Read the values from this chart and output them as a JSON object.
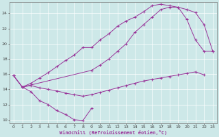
{
  "xlabel": "Windchill (Refroidissement éolien,°C)",
  "bg_color": "#cde8e8",
  "line_color": "#993399",
  "grid_color": "#b0d8d8",
  "xlim": [
    -0.5,
    23.5
  ],
  "ylim": [
    9.5,
    25.5
  ],
  "xticks": [
    0,
    1,
    2,
    3,
    4,
    5,
    6,
    7,
    8,
    9,
    10,
    11,
    12,
    13,
    14,
    15,
    16,
    17,
    18,
    19,
    20,
    21,
    22,
    23
  ],
  "yticks": [
    10,
    12,
    14,
    16,
    18,
    20,
    22,
    24
  ],
  "lines": [
    {
      "x": [
        0,
        1,
        2,
        3,
        4,
        5,
        6,
        7,
        8,
        9
      ],
      "y": [
        15.8,
        14.3,
        13.7,
        12.5,
        12.0,
        11.2,
        10.7,
        10.0,
        9.9,
        11.5
      ]
    },
    {
      "x": [
        0,
        1,
        2,
        3,
        4,
        5,
        6,
        7,
        8,
        9,
        10,
        11,
        12,
        13,
        14,
        15,
        16,
        17,
        18,
        19,
        20,
        21,
        22
      ],
      "y": [
        15.8,
        14.3,
        14.5,
        14.2,
        14.0,
        13.8,
        13.5,
        13.3,
        13.1,
        13.3,
        13.6,
        13.9,
        14.2,
        14.5,
        14.8,
        15.1,
        15.3,
        15.5,
        15.7,
        15.9,
        16.1,
        16.3,
        15.9
      ]
    },
    {
      "x": [
        0,
        1,
        2,
        3,
        4,
        5,
        6,
        7,
        8,
        9,
        10,
        11,
        12,
        13,
        14,
        15,
        16,
        17,
        18,
        19,
        20,
        21,
        22,
        23
      ],
      "y": [
        15.8,
        14.3,
        14.8,
        15.5,
        16.2,
        17.0,
        17.8,
        18.5,
        19.5,
        19.5,
        20.5,
        21.3,
        22.3,
        23.0,
        23.5,
        24.2,
        25.0,
        25.2,
        25.0,
        24.8,
        23.2,
        20.5,
        19.0,
        19.0
      ]
    },
    {
      "x": [
        1,
        9,
        10,
        11,
        12,
        13,
        14,
        15,
        16,
        17,
        18,
        19,
        20,
        21,
        22,
        23
      ],
      "y": [
        14.3,
        16.5,
        17.2,
        18.0,
        19.0,
        20.0,
        21.5,
        22.5,
        23.5,
        24.5,
        24.8,
        24.8,
        24.5,
        24.1,
        22.5,
        19.0
      ]
    }
  ]
}
